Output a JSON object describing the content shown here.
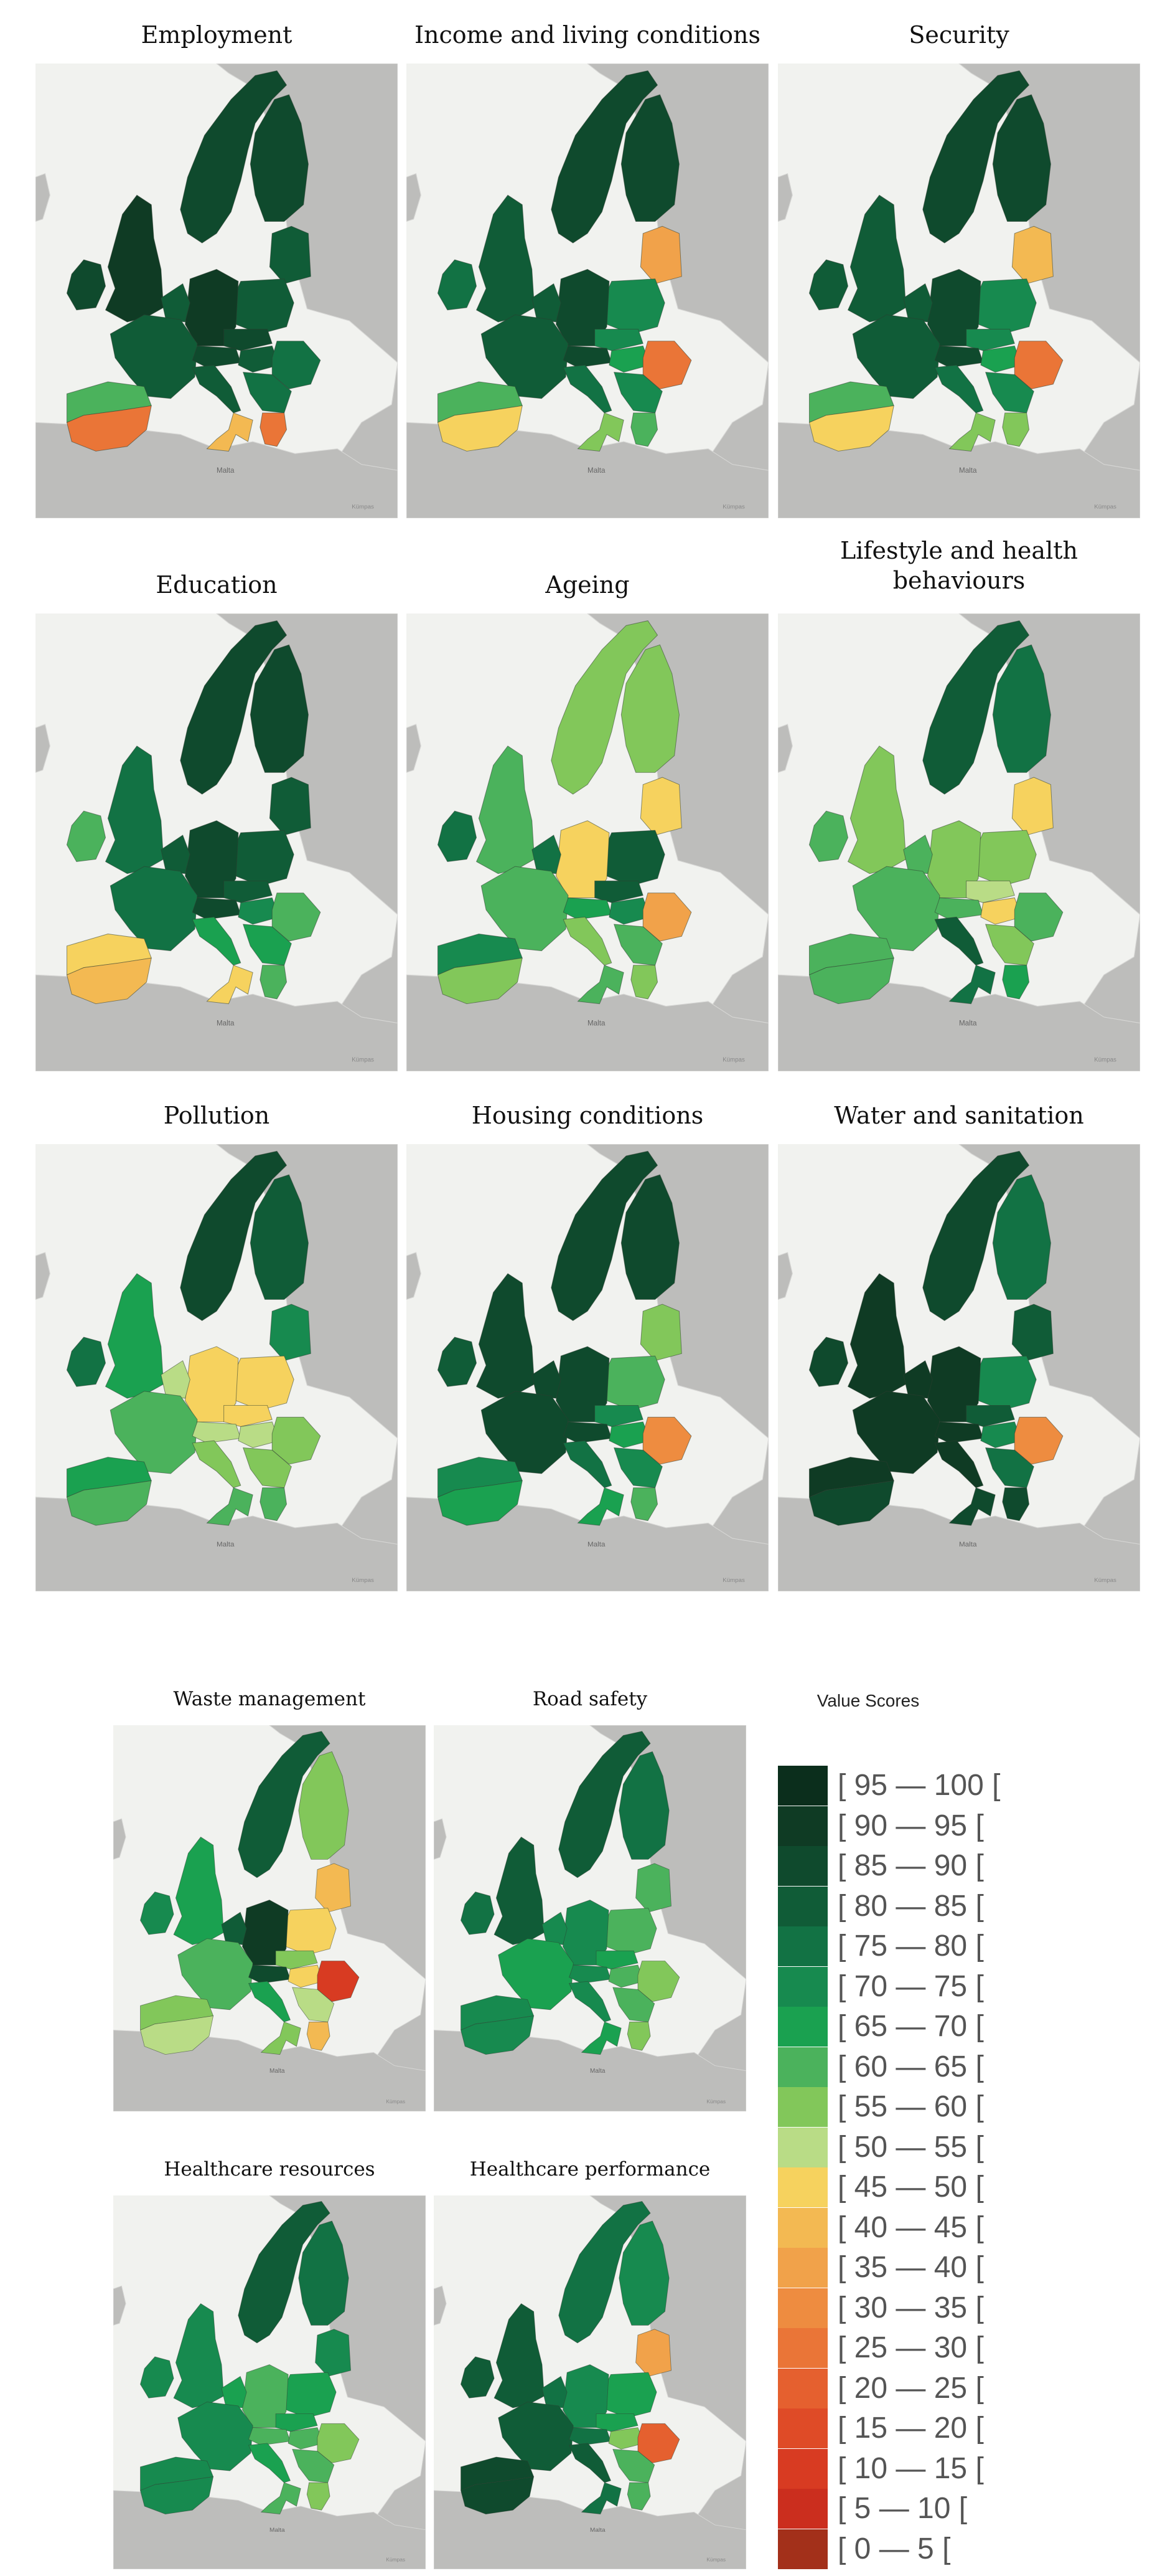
{
  "figure": {
    "panels": [
      {
        "key": "employment",
        "title": "Employment"
      },
      {
        "key": "income",
        "title": "Income and living conditions"
      },
      {
        "key": "security",
        "title": "Security"
      },
      {
        "key": "education",
        "title": "Education"
      },
      {
        "key": "ageing",
        "title": "Ageing"
      },
      {
        "key": "lifestyle",
        "title": "Lifestyle and health behaviours"
      },
      {
        "key": "pollution",
        "title": "Pollution"
      },
      {
        "key": "housing",
        "title": "Housing conditions"
      },
      {
        "key": "water",
        "title": "Water and sanitation"
      },
      {
        "key": "waste",
        "title": "Waste management"
      },
      {
        "key": "road",
        "title": "Road safety"
      },
      {
        "key": "hc_resources",
        "title": "Healthcare resources"
      },
      {
        "key": "hc_performance",
        "title": "Healthcare performance"
      }
    ],
    "map_labels": {
      "malta": "Malta",
      "credit": "Kümpas"
    }
  },
  "legend": {
    "title": "Value Scores",
    "items": [
      {
        "label": "[ 95 — 100 [",
        "color": "#0b2e1c"
      },
      {
        "label": "[ 90 — 95 [",
        "color": "#0f3b24"
      },
      {
        "label": "[ 85 — 90 [",
        "color": "#0f4a2d"
      },
      {
        "label": "[ 80 — 85 [",
        "color": "#105c37"
      },
      {
        "label": "[ 75 — 80 [",
        "color": "#127244"
      },
      {
        "label": "[ 70 — 75 [",
        "color": "#178a4f"
      },
      {
        "label": "[ 65 — 70 [",
        "color": "#1aa150"
      },
      {
        "label": "[ 60 — 65 [",
        "color": "#4bb25c"
      },
      {
        "label": "[ 55 — 60 [",
        "color": "#82c75a"
      },
      {
        "label": "[ 50 — 55 [",
        "color": "#b9dc86"
      },
      {
        "label": "[ 45 — 50 [",
        "color": "#f6d25e"
      },
      {
        "label": "[ 40 — 45 [",
        "color": "#f3b952"
      },
      {
        "label": "[ 35 — 40 [",
        "color": "#f1a24a"
      },
      {
        "label": "[ 30 — 35 [",
        "color": "#ee8c40"
      },
      {
        "label": "[ 25 — 30 [",
        "color": "#ea7537"
      },
      {
        "label": "[ 20 — 25 [",
        "color": "#e5602f"
      },
      {
        "label": "[ 15 — 20 [",
        "color": "#df4b27"
      },
      {
        "label": "[ 10 — 15 [",
        "color": "#d83b22"
      },
      {
        "label": "[ 5 — 10 [",
        "color": "#cb2e1e"
      },
      {
        "label": "[ 0 — 5 [",
        "color": "#a3301a"
      }
    ]
  },
  "map_style": {
    "sea": "#f1f2ef",
    "outside_land": "#bdbdbb",
    "border": "#2d3c30"
  },
  "region_scores": {
    "employment": {
      "uk": 90,
      "ie": 88,
      "iberia": 62,
      "iberia_south": 25,
      "france": 80,
      "benelux": 82,
      "germany": 90,
      "alps": 88,
      "italy": 80,
      "italy_south": 40,
      "balkans": 75,
      "greece": 25,
      "scandinavia": 85,
      "finland": 85,
      "baltics": 80,
      "poland": 80,
      "czsk": 85,
      "hungary": 80,
      "romania": 75
    },
    "income": {
      "uk": 80,
      "ie": 78,
      "iberia": 62,
      "iberia_south": 48,
      "france": 80,
      "benelux": 82,
      "germany": 85,
      "alps": 85,
      "italy": 75,
      "italy_south": 55,
      "balkans": 72,
      "greece": 60,
      "scandinavia": 88,
      "finland": 85,
      "baltics": 38,
      "poland": 72,
      "czsk": 72,
      "hungary": 68,
      "romania": 25
    },
    "security": {
      "uk": 80,
      "ie": 80,
      "iberia": 60,
      "iberia_south": 48,
      "france": 80,
      "benelux": 82,
      "germany": 85,
      "alps": 85,
      "italy": 75,
      "italy_south": 55,
      "balkans": 72,
      "greece": 58,
      "scandinavia": 88,
      "finland": 85,
      "baltics": 40,
      "poland": 70,
      "czsk": 72,
      "hungary": 68,
      "romania": 25
    },
    "education": {
      "uk": 78,
      "ie": 62,
      "iberia": 45,
      "iberia_south": 40,
      "france": 78,
      "benelux": 80,
      "germany": 85,
      "alps": 85,
      "italy": 65,
      "italy_south": 45,
      "balkans": 65,
      "greece": 60,
      "scandinavia": 88,
      "finland": 85,
      "baltics": 80,
      "poland": 80,
      "czsk": 82,
      "hungary": 72,
      "romania": 60
    },
    "ageing": {
      "uk": 62,
      "ie": 78,
      "iberia": 70,
      "iberia_south": 55,
      "france": 62,
      "benelux": 75,
      "germany": 48,
      "alps": 65,
      "italy": 55,
      "italy_south": 60,
      "balkans": 60,
      "greece": 55,
      "scandinavia": 55,
      "finland": 57,
      "baltics": 45,
      "poland": 82,
      "czsk": 80,
      "hungary": 70,
      "romania": 38
    },
    "lifestyle": {
      "uk": 55,
      "ie": 62,
      "iberia": 60,
      "iberia_south": 62,
      "france": 60,
      "benelux": 60,
      "germany": 58,
      "alps": 62,
      "italy": 80,
      "italy_south": 78,
      "balkans": 55,
      "greece": 65,
      "scandinavia": 80,
      "finland": 75,
      "baltics": 48,
      "poland": 55,
      "czsk": 50,
      "hungary": 45,
      "romania": 60
    },
    "pollution": {
      "uk": 68,
      "ie": 75,
      "iberia": 68,
      "iberia_south": 60,
      "france": 60,
      "benelux": 52,
      "germany": 48,
      "alps": 50,
      "italy": 55,
      "italy_south": 60,
      "balkans": 55,
      "greece": 60,
      "scandinavia": 85,
      "finland": 80,
      "baltics": 70,
      "poland": 48,
      "czsk": 45,
      "hungary": 50,
      "romania": 55
    },
    "housing": {
      "uk": 88,
      "ie": 80,
      "iberia": 70,
      "iberia_south": 65,
      "france": 85,
      "benelux": 85,
      "germany": 85,
      "alps": 85,
      "italy": 75,
      "italy_south": 65,
      "balkans": 70,
      "greece": 60,
      "scandinavia": 88,
      "finland": 85,
      "baltics": 55,
      "poland": 60,
      "czsk": 72,
      "hungary": 65,
      "romania": 30
    },
    "water": {
      "uk": 90,
      "ie": 88,
      "iberia": 90,
      "iberia_south": 88,
      "france": 90,
      "benelux": 90,
      "germany": 90,
      "alps": 90,
      "italy": 90,
      "italy_south": 88,
      "balkans": 75,
      "greece": 88,
      "scandinavia": 85,
      "finland": 75,
      "baltics": 80,
      "poland": 72,
      "czsk": 80,
      "hungary": 70,
      "romania": 30
    },
    "waste": {
      "uk": 68,
      "ie": 70,
      "iberia": 58,
      "iberia_south": 50,
      "france": 60,
      "benelux": 82,
      "germany": 90,
      "alps": 85,
      "italy": 65,
      "italy_south": 55,
      "balkans": 50,
      "greece": 40,
      "scandinavia": 80,
      "finland": 55,
      "baltics": 40,
      "poland": 48,
      "czsk": 55,
      "hungary": 45,
      "romania": 12
    },
    "road": {
      "uk": 80,
      "ie": 78,
      "iberia": 72,
      "iberia_south": 72,
      "france": 65,
      "benelux": 72,
      "germany": 70,
      "alps": 70,
      "italy": 70,
      "italy_south": 65,
      "balkans": 60,
      "greece": 55,
      "scandinavia": 80,
      "finland": 78,
      "baltics": 60,
      "poland": 62,
      "czsk": 65,
      "hungary": 62,
      "romania": 58
    },
    "hc_resources": {
      "uk": 72,
      "ie": 70,
      "iberia": 70,
      "iberia_south": 72,
      "france": 70,
      "benelux": 65,
      "germany": 62,
      "alps": 60,
      "italy": 65,
      "italy_south": 62,
      "balkans": 62,
      "greece": 55,
      "scandinavia": 80,
      "finland": 78,
      "baltics": 72,
      "poland": 65,
      "czsk": 65,
      "hungary": 62,
      "romania": 55
    },
    "hc_performance": {
      "uk": 82,
      "ie": 80,
      "iberia": 85,
      "iberia_south": 85,
      "france": 80,
      "benelux": 75,
      "germany": 72,
      "alps": 75,
      "italy": 80,
      "italy_south": 75,
      "balkans": 60,
      "greece": 60,
      "scandinavia": 78,
      "finland": 70,
      "baltics": 35,
      "poland": 65,
      "czsk": 65,
      "hungary": 55,
      "romania": 20
    }
  }
}
